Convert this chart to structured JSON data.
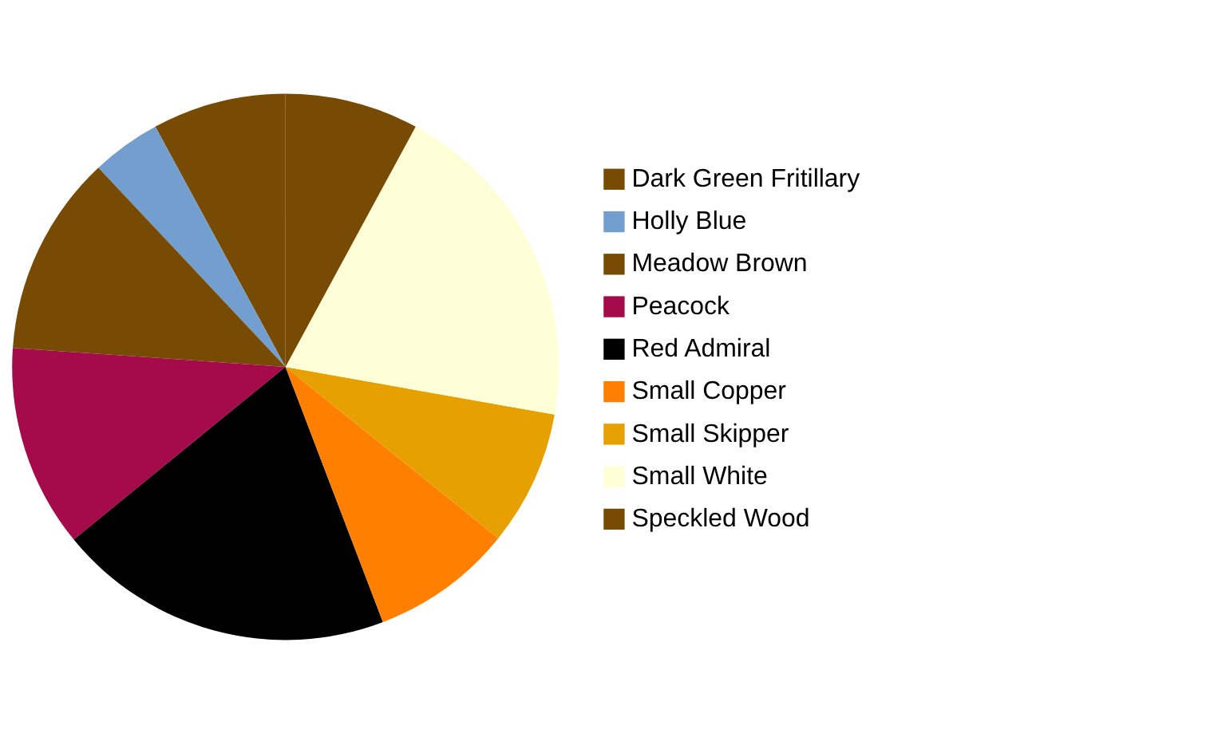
{
  "chart_data": {
    "type": "pie",
    "categories": [
      "Dark Green Fritillary",
      "Holly Blue",
      "Meadow Brown",
      "Peacock",
      "Red Admiral",
      "Small Copper",
      "Small Skipper",
      "Small White",
      "Speckled Wood"
    ],
    "values": [
      7.9,
      4.1,
      11.9,
      12.0,
      19.9,
      8.4,
      8.0,
      19.9,
      7.9
    ],
    "colors": [
      "#784b04",
      "#729fcf",
      "#784b04",
      "#a50a4a",
      "#000000",
      "#ff8000",
      "#e6a000",
      "#ffffd7",
      "#784b04"
    ],
    "legend": "right"
  }
}
